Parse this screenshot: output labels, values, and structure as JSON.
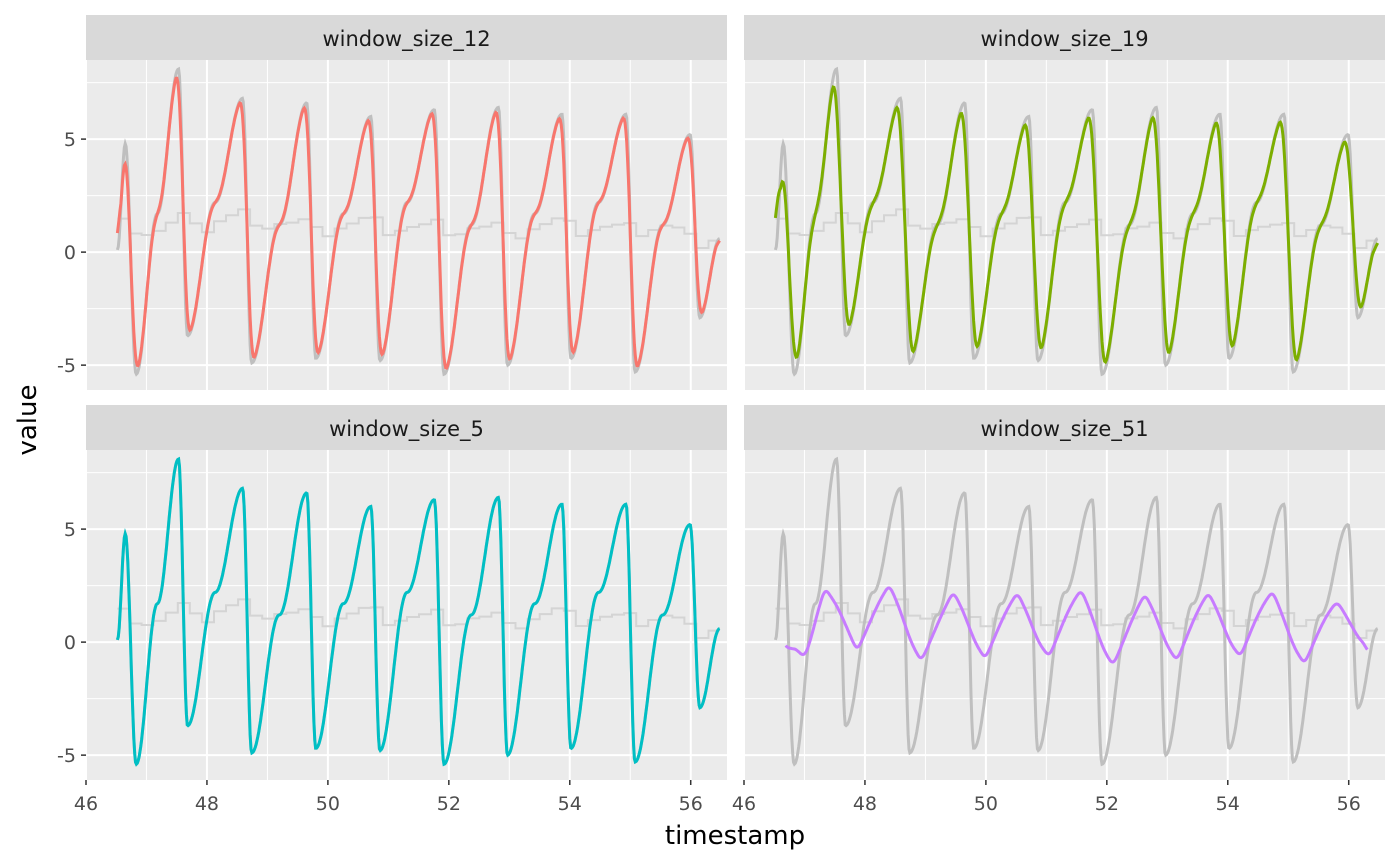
{
  "chart_data": {
    "type": "line",
    "layout": "facet-wrap 2x2",
    "xlabel": "timestamp",
    "ylabel": "value",
    "xlim": [
      46,
      56.6
    ],
    "ylim": [
      -6.1,
      8.5
    ],
    "x_ticks": [
      "46",
      "48",
      "50",
      "52",
      "54",
      "56"
    ],
    "x_tick_values": [
      46,
      48,
      50,
      52,
      54,
      56
    ],
    "y_ticks": [
      "-5",
      "0",
      "5"
    ],
    "y_tick_values": [
      -5,
      0,
      5
    ],
    "signal": {
      "description_of_shape": "underlying oscillating series shown in grey in every panel",
      "color": "#bfbfbf",
      "peak_times": [
        46.65,
        47.53,
        48.59,
        49.65,
        50.71,
        51.76,
        52.82,
        53.87,
        54.93,
        55.99
      ],
      "peak_values": [
        4.8,
        8.1,
        6.8,
        6.6,
        6.0,
        6.3,
        6.4,
        6.1,
        6.1,
        5.2
      ],
      "trough_times": [
        46.83,
        47.68,
        48.74,
        49.8,
        50.86,
        51.92,
        52.97,
        54.02,
        55.08,
        56.15
      ],
      "trough_values": [
        -5.4,
        -3.7,
        -4.9,
        -4.7,
        -4.8,
        -5.4,
        -5.0,
        -4.7,
        -5.3,
        -2.9
      ]
    },
    "x_range": [
      46.52,
      56.48
    ],
    "panels": [
      {
        "title": "window_size_12",
        "window": 12,
        "color": "#F8766D"
      },
      {
        "title": "window_size_19",
        "window": 19,
        "color": "#7CAE00"
      },
      {
        "title": "window_size_5",
        "window": 5,
        "color": "#00BFC4"
      },
      {
        "title": "window_size_51",
        "window": 51,
        "color": "#C77CFF"
      }
    ],
    "panel_background": "#EBEBEB",
    "strip_background": "#D9D9D9",
    "grid": true
  }
}
